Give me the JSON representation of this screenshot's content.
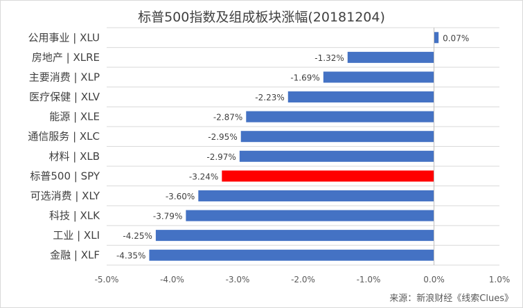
{
  "chart_data": {
    "type": "bar",
    "orientation": "horizontal",
    "title": "标普500指数及组成板块涨幅(20181204)",
    "categories": [
      "公用事业 | XLU",
      "房地产 | XLRE",
      "主要消费 | XLP",
      "医疗保健 | XLV",
      "能源 | XLE",
      "通信服务 | XLC",
      "材料 | XLB",
      "标普500 | SPY",
      "可选消费 | XLY",
      "科技 | XLK",
      "工业 | XLI",
      "金融 | XLF"
    ],
    "values": [
      0.07,
      -1.32,
      -1.69,
      -2.23,
      -2.87,
      -2.95,
      -2.97,
      -3.24,
      -3.6,
      -3.79,
      -4.25,
      -4.35
    ],
    "data_labels": [
      "0.07%",
      "-1.32%",
      "-1.69%",
      "-2.23%",
      "-2.87%",
      "-2.95%",
      "-2.97%",
      "-3.24%",
      "-3.60%",
      "-3.79%",
      "-4.25%",
      "-4.35%"
    ],
    "xlim": [
      -5.0,
      1.0
    ],
    "x_ticks": [
      -5.0,
      -4.0,
      -3.0,
      -2.0,
      -1.0,
      0.0,
      1.0
    ],
    "x_tick_labels": [
      "-5.0%",
      "-4.0%",
      "-3.0%",
      "-2.0%",
      "-1.0%",
      "0.0%",
      "1.0%"
    ],
    "bar_color": "#4472C4",
    "highlight_color": "#FF0000",
    "highlight_category": "标普500 | SPY",
    "grid": "horizontal band lines",
    "legend": "none",
    "source": "来源：新浪财经《线索Clues》"
  }
}
